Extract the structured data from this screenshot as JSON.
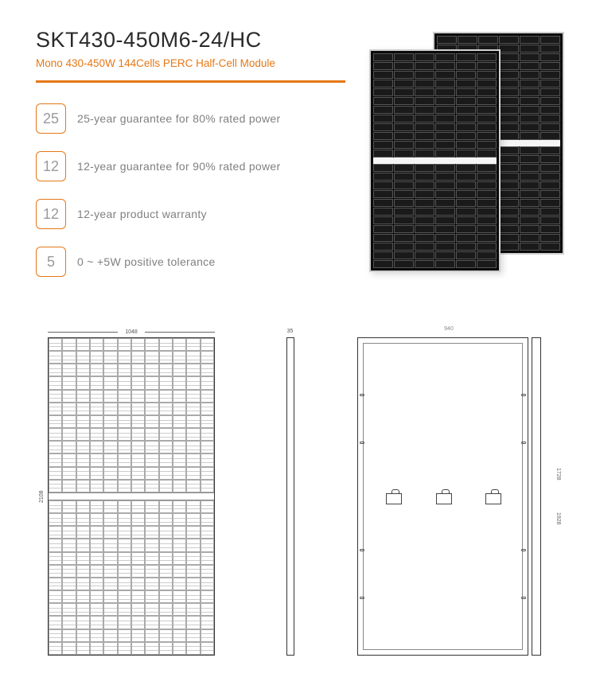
{
  "header": {
    "title": "SKT430-450M6-24/HC",
    "subtitle": "Mono 430-450W 144Cells PERC Half-Cell Module",
    "accent_color": "#e67817"
  },
  "features": [
    {
      "badge": "25",
      "text": "25-year guarantee for 80% rated power"
    },
    {
      "badge": "12",
      "text": "12-year guarantee for 90% rated power"
    },
    {
      "badge": "12",
      "text": "12-year product warranty"
    },
    {
      "badge": "5",
      "text": "0 ~ +5W positive tolerance"
    }
  ],
  "product_image": {
    "panel_cols": 6,
    "panel_rows_per_half": 12,
    "cell_color": "#1a1a1a",
    "frame_color": "#d0d0d0"
  },
  "diagrams": {
    "front": {
      "width_label": "1048",
      "height_label": "2108",
      "cols": 12,
      "rows_per_half": 12
    },
    "side": {
      "depth_label": "35"
    },
    "back": {
      "width_label": "940",
      "height_label_inner": "1728",
      "height_label_outer": "1928"
    }
  },
  "colors": {
    "text_primary": "#2a2a2a",
    "text_muted": "#808080",
    "accent": "#e67817",
    "panel_black": "#0a0a0a",
    "diagram_line": "#333333"
  }
}
